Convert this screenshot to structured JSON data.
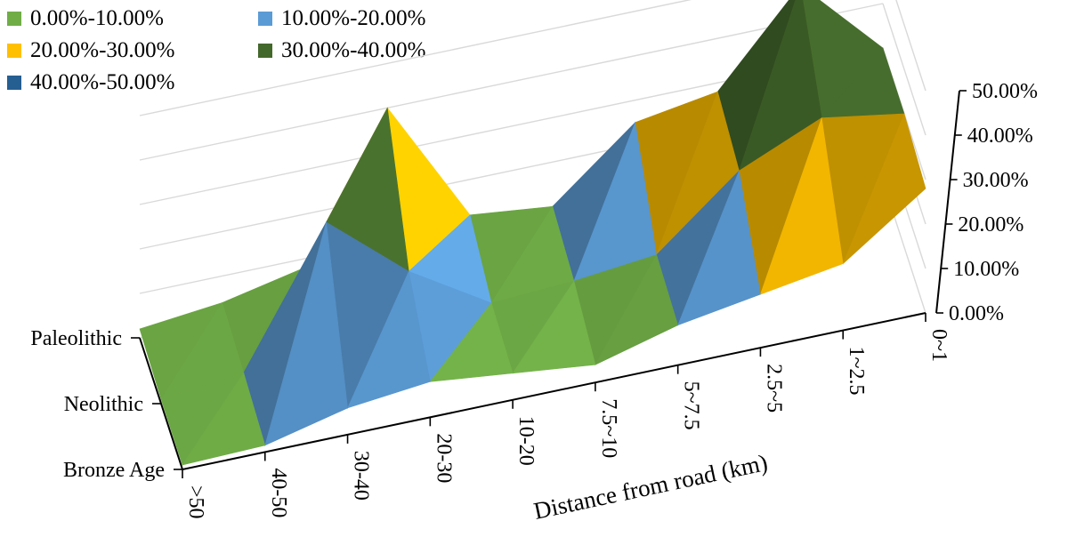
{
  "chart_data": {
    "type": "surface",
    "x_categories": [
      ">50",
      "40-50",
      "30-40",
      "20-30",
      "10-20",
      "7.5~10",
      "5~7.5",
      "2.5~5",
      "1~2.5",
      "0~1"
    ],
    "y_categories": [
      "Bronze Age",
      "Neolithic",
      "Paleolithic"
    ],
    "xlabel": "Distance from road (km)",
    "z_ticks": [
      "0.00%",
      "10.00%",
      "20.00%",
      "30.00%",
      "40.00%",
      "50.00%"
    ],
    "zlim": [
      0,
      50
    ],
    "series": [
      {
        "name": "Bronze Age",
        "values": [
          1.0,
          1.5,
          6.0,
          8.0,
          6.0,
          4.0,
          9.0,
          12.0,
          15.0,
          28.0
        ]
      },
      {
        "name": "Neolithic",
        "values": [
          1.0,
          3.0,
          33.0,
          18.0,
          7.0,
          8.0,
          10.0,
          25.0,
          33.0,
          30.0
        ]
      },
      {
        "name": "Paleolithic",
        "values": [
          2.0,
          4.0,
          8.0,
          40.0,
          12.0,
          10.0,
          25.0,
          28.0,
          48.0,
          30.0
        ]
      }
    ],
    "legend": {
      "position": "top-left",
      "items": [
        {
          "label": "0.00%-10.00%",
          "color": "#70AD47"
        },
        {
          "label": "10.00%-20.00%",
          "color": "#5B9BD5"
        },
        {
          "label": "20.00%-30.00%",
          "color": "#FFC000"
        },
        {
          "label": "30.00%-40.00%",
          "color": "#43682B"
        },
        {
          "label": "40.00%-50.00%",
          "color": "#255E91"
        }
      ]
    }
  }
}
